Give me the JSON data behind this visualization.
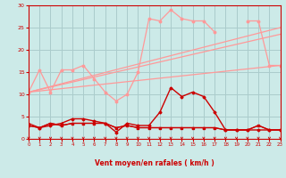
{
  "x": [
    0,
    1,
    2,
    3,
    4,
    5,
    6,
    7,
    8,
    9,
    10,
    11,
    12,
    13,
    14,
    15,
    16,
    17,
    18,
    19,
    20,
    21,
    22,
    23
  ],
  "line_rafales": [
    10.5,
    15.5,
    10.5,
    15.5,
    15.5,
    16.5,
    13.5,
    10.5,
    8.5,
    10.0,
    15.0,
    27.0,
    26.5,
    29.0,
    27.0,
    26.5,
    26.5,
    24.0,
    null,
    null,
    26.5,
    26.5,
    16.5,
    16.5
  ],
  "trend1_x": [
    0,
    23
  ],
  "trend1_y": [
    10.5,
    25.0
  ],
  "trend2_x": [
    0,
    23
  ],
  "trend2_y": [
    10.5,
    23.5
  ],
  "trend3_x": [
    0,
    23
  ],
  "trend3_y": [
    10.5,
    16.5
  ],
  "line_moyen": [
    3.0,
    2.5,
    3.0,
    3.5,
    4.5,
    4.5,
    4.0,
    3.5,
    1.5,
    3.5,
    3.0,
    3.0,
    6.0,
    11.5,
    9.5,
    10.5,
    9.5,
    6.0,
    2.0,
    2.0,
    2.0,
    2.0,
    2.0,
    2.0
  ],
  "line_flat1": [
    3.0,
    2.5,
    3.5,
    3.0,
    3.5,
    3.5,
    3.5,
    3.5,
    2.5,
    3.0,
    2.5,
    2.5,
    2.5,
    2.5,
    2.5,
    2.5,
    2.5,
    2.5,
    2.0,
    2.0,
    2.0,
    3.0,
    2.0,
    2.0
  ],
  "line_flat2": [
    3.5,
    2.5,
    3.5,
    3.0,
    3.5,
    3.5,
    3.5,
    3.5,
    2.5,
    3.0,
    2.5,
    2.5,
    2.5,
    2.5,
    2.5,
    2.5,
    2.5,
    2.5,
    2.0,
    2.0,
    2.0,
    3.0,
    2.0,
    2.0
  ],
  "bg_color": "#cceae8",
  "grid_color": "#aacccc",
  "line_light_color": "#ff9999",
  "line_dark_color": "#cc0000",
  "xlabel": "Vent moyen/en rafales ( km/h )",
  "xlim": [
    0,
    23
  ],
  "ylim": [
    0,
    30
  ],
  "yticks": [
    0,
    5,
    10,
    15,
    20,
    25,
    30
  ]
}
